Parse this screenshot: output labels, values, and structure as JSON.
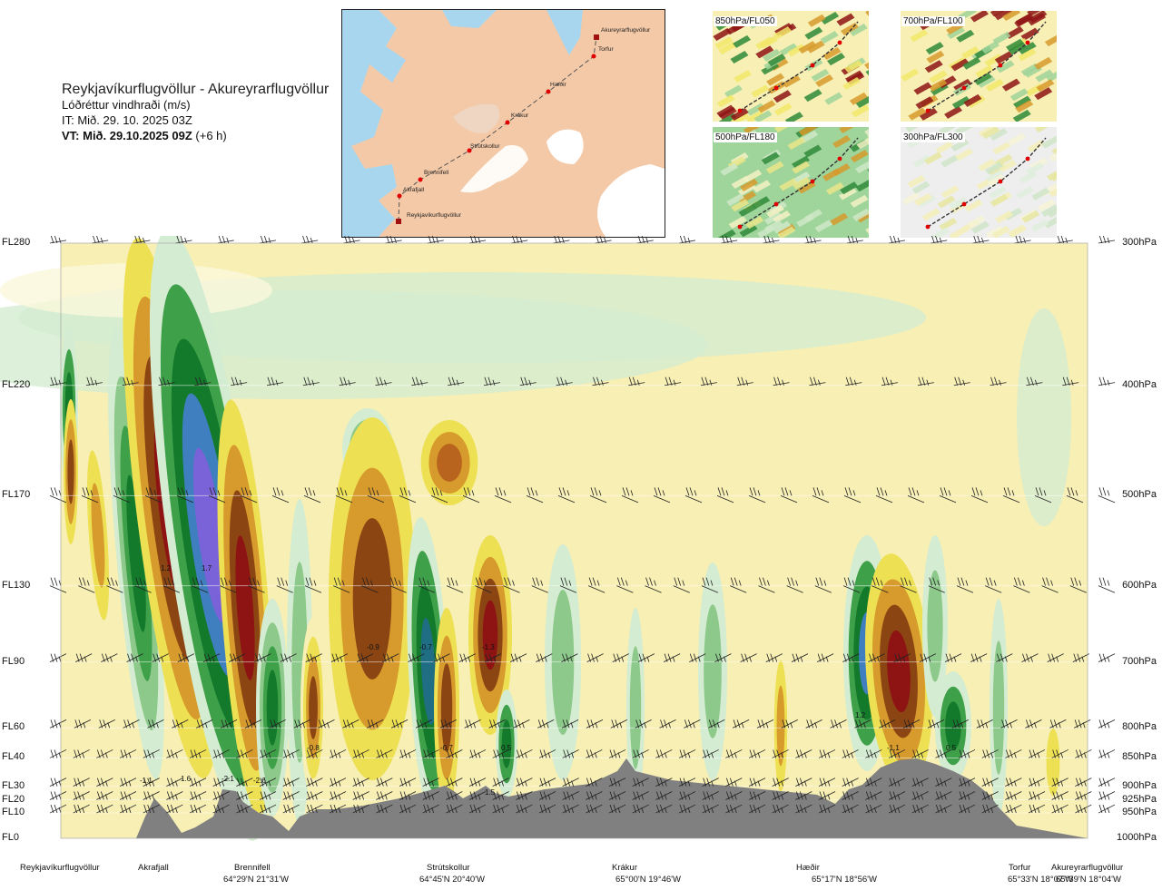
{
  "title": {
    "route": "Reykjavíkurflugvöllur - Akureyrarflugvöllur",
    "variable": "Lóðréttur vindhraði (m/s)",
    "issue_time": "IT: Mið. 29. 10. 2025 03Z",
    "valid_time": "VT: Mið. 29.10.2025 09Z",
    "lead_time": "(+6 h)"
  },
  "inset_map": {
    "stations": [
      "Akureyrarflugvöllur",
      "Torfur",
      "Hæðir",
      "Krákur",
      "Strútskollur",
      "Brennifell",
      "Akrafjall",
      "Reykjavíkurflugvöllur"
    ],
    "colors": {
      "sea": "#a9d6ef",
      "land": "#f4c9a7",
      "ice": "#ffffff",
      "route": "#555555",
      "point": "#e00000"
    }
  },
  "mini_maps": [
    {
      "label": "850hPa/FL050"
    },
    {
      "label": "700hPa/FL100"
    },
    {
      "label": "500hPa/FL180"
    },
    {
      "label": "300hPa/FL300"
    }
  ],
  "chart_data": {
    "type": "heatmap",
    "title": "Lóðréttur vindhraði (m/s)",
    "y_axis_left": [
      "FL280",
      "FL220",
      "FL170",
      "FL130",
      "FL90",
      "FL60",
      "FL40",
      "FL30",
      "FL20",
      "FL10",
      "FL0"
    ],
    "y_axis_right": [
      "300hPa",
      "400hPa",
      "500hPa",
      "600hPa",
      "700hPa",
      "800hPa",
      "850hPa",
      "900hPa",
      "925hPa",
      "950hPa",
      "1000hPa"
    ],
    "pressure_levels_hPa": [
      300,
      400,
      500,
      600,
      700,
      800,
      850,
      900,
      925,
      950,
      1000
    ],
    "x_locations": [
      {
        "name": "Reykjavíkurflugvöllur",
        "coord": ""
      },
      {
        "name": "Akrafjall",
        "coord": ""
      },
      {
        "name": "Brennifell",
        "coord": "64°29'N 21°31'W"
      },
      {
        "name": "Strútskollur",
        "coord": "64°45'N 20°40'W"
      },
      {
        "name": "Krákur",
        "coord": "65°00'N 19°46'W"
      },
      {
        "name": "Hæðir",
        "coord": "65°17'N 18°56'W"
      },
      {
        "name": "Torfur",
        "coord": "65°33'N 18°07'W"
      },
      {
        "name": "Akureyrarflugvöllur",
        "coord": "65°39'N 18°04'W"
      }
    ],
    "value_labels": [
      "1.2",
      "1.7",
      "-0.9",
      "-0.7",
      "-1.3",
      "1.2",
      "-1.1",
      "-0.8",
      "-0.7",
      "0.5",
      "0.5",
      "1.6",
      "-2.1",
      "-2.6",
      "-1.1",
      "1.5"
    ],
    "colors": {
      "strong_pos": "#7a62d8",
      "pos_mid": "#3f7fbf",
      "pos_green_dark": "#137a2c",
      "pos_green": "#3fa04a",
      "pos_green_light": "#8cc98a",
      "pale_green": "#d4ecd1",
      "zero": "#f7f7f7",
      "pale_yellow": "#f7efb4",
      "yellow": "#ede052",
      "orange": "#d79a2c",
      "brown": "#8b4513",
      "dark_red": "#8e1414",
      "terrain": "#808080"
    }
  }
}
